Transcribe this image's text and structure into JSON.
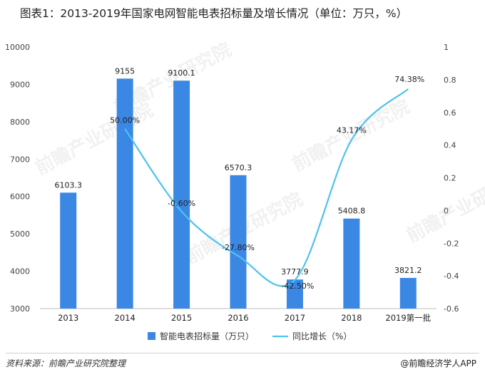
{
  "title": "图表1：2013-2019年国家电网智能电表招标量及增长情况（单位：万只，%）",
  "source_label": "资料来源：前瞻产业研究院整理",
  "brand": "@前瞻经济学人APP",
  "watermark": "前瞻产业研究院",
  "colors": {
    "bar": "#3b87e4",
    "line": "#4dc3f0",
    "axis": "#bfbfbf"
  },
  "chart_data": {
    "type": "bar",
    "categories": [
      "2013",
      "2014",
      "2015",
      "2016",
      "2017",
      "2018",
      "2019第一批"
    ],
    "series": [
      {
        "name": "智能电表招标量（万只）",
        "type": "bar",
        "axis": "left",
        "values": [
          6103.3,
          9155,
          9100.1,
          6570.3,
          3777.9,
          5408.8,
          3821.2
        ],
        "labels": [
          "6103.3",
          "9155",
          "9100.1",
          "6570.3",
          "3777.9",
          "5408.8",
          "3821.2"
        ]
      },
      {
        "name": "同比增长（%）",
        "type": "line",
        "axis": "right",
        "values": [
          null,
          0.5,
          -0.006,
          -0.278,
          -0.425,
          0.4317,
          0.7438
        ],
        "labels": [
          "",
          "50.00%",
          "-0.60%",
          "-27.80%",
          "-42.50%",
          "43.17%",
          "74.38%"
        ]
      }
    ],
    "y_left": {
      "min": 3000,
      "max": 10000,
      "ticks": [
        "3000",
        "4000",
        "5000",
        "6000",
        "7000",
        "8000",
        "9000",
        "10000"
      ]
    },
    "y_right": {
      "min": -0.6,
      "max": 1,
      "ticks": [
        "-0.6",
        "-0.4",
        "-0.2",
        "0",
        "0.2",
        "0.4",
        "0.6",
        "0.8",
        "1"
      ]
    },
    "grid": false,
    "legend_position": "bottom"
  }
}
